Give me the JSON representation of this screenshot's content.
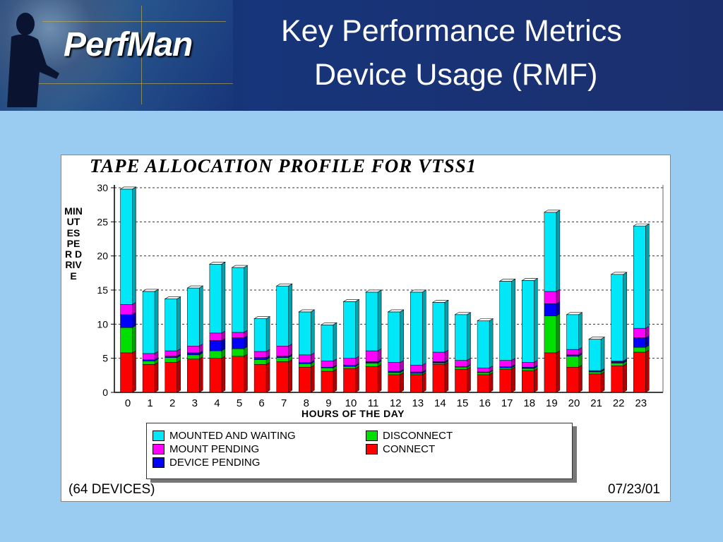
{
  "header": {
    "logo_text": "PerfMan",
    "title_line1": "Key Performance Metrics",
    "title_line2": "Device Usage (RMF)"
  },
  "footer": {
    "devices": "(64 DEVICES)",
    "date": "07/23/01"
  },
  "colors": {
    "mounted_and_waiting": "#00e8f8",
    "mount_pending": "#ff00ff",
    "device_pending": "#0000ff",
    "disconnect": "#00e000",
    "connect": "#ff0000"
  },
  "chart_data": {
    "type": "bar",
    "stacked": true,
    "title": "TAPE ALLOCATION PROFILE FOR VTSS1",
    "xlabel": "HOURS OF THE DAY",
    "ylabel": "MINUTES PER DRIVE",
    "ylim": [
      0,
      30
    ],
    "yticks": [
      0,
      5,
      10,
      15,
      20,
      25,
      30
    ],
    "grid": true,
    "legend_position": "bottom",
    "categories": [
      "0",
      "1",
      "2",
      "3",
      "4",
      "5",
      "6",
      "7",
      "8",
      "9",
      "10",
      "11",
      "12",
      "13",
      "14",
      "15",
      "16",
      "17",
      "18",
      "19",
      "20",
      "21",
      "22",
      "23"
    ],
    "series": [
      {
        "name": "CONNECT",
        "color": "#ff0000",
        "values": [
          5.8,
          4.1,
          4.4,
          4.9,
          5.0,
          5.3,
          4.1,
          4.5,
          3.7,
          3.1,
          3.5,
          3.8,
          2.6,
          2.6,
          4.1,
          3.4,
          2.6,
          3.4,
          3.2,
          5.8,
          3.7,
          2.7,
          3.9,
          5.9
        ]
      },
      {
        "name": "DISCONNECT",
        "color": "#00e000",
        "values": [
          3.7,
          0.5,
          0.7,
          0.6,
          1.1,
          1.1,
          0.7,
          0.6,
          0.5,
          0.5,
          0.3,
          0.5,
          0.3,
          0.2,
          0.2,
          0.3,
          0.3,
          0.2,
          0.3,
          5.4,
          1.6,
          0.3,
          0.4,
          0.7
        ]
      },
      {
        "name": "DEVICE PENDING",
        "color": "#0000ff",
        "values": [
          1.9,
          0.2,
          0.2,
          0.3,
          1.5,
          1.6,
          0.3,
          0.2,
          0.2,
          0.1,
          0.2,
          0.2,
          0.2,
          0.2,
          0.2,
          0.1,
          0.1,
          0.2,
          0.2,
          1.8,
          0.2,
          0.1,
          0.2,
          1.4
        ]
      },
      {
        "name": "MOUNT PENDING",
        "color": "#ff00ff",
        "values": [
          1.5,
          0.9,
          0.8,
          1.0,
          1.1,
          0.8,
          0.9,
          1.5,
          1.1,
          0.9,
          1.0,
          1.6,
          1.3,
          1.0,
          1.4,
          0.9,
          0.6,
          0.9,
          0.7,
          1.8,
          0.8,
          0.1,
          0.1,
          1.4
        ]
      },
      {
        "name": "MOUNTED AND WAITING",
        "color": "#00e8f8",
        "values": [
          16.9,
          9.1,
          7.6,
          8.5,
          10.1,
          9.5,
          4.8,
          8.8,
          6.3,
          5.3,
          8.3,
          8.6,
          7.4,
          10.7,
          7.3,
          6.7,
          6.9,
          11.6,
          12.0,
          11.6,
          5.1,
          4.6,
          12.7,
          15.0
        ]
      }
    ],
    "legend": {
      "mounted_and_waiting": "MOUNTED AND WAITING",
      "mount_pending": "MOUNT PENDING",
      "device_pending": "DEVICE PENDING",
      "disconnect": "DISCONNECT",
      "connect": "CONNECT"
    }
  }
}
